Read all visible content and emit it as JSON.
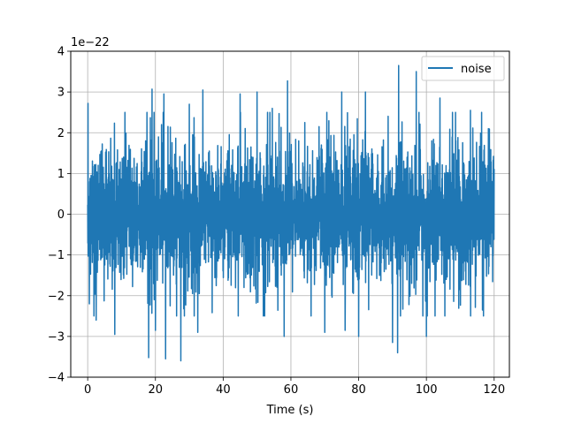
{
  "chart_data": {
    "type": "line",
    "title": "",
    "xlabel": "Time (s)",
    "ylabel": "",
    "y_offset_text": "1e−22",
    "xlim": [
      -5,
      124.5
    ],
    "ylim": [
      -4,
      4
    ],
    "y_scale_multiplier": 1e-22,
    "x_ticks": [
      0,
      20,
      40,
      60,
      80,
      100,
      120
    ],
    "x_tick_labels": [
      "0",
      "20",
      "40",
      "60",
      "80",
      "100",
      "120"
    ],
    "y_ticks": [
      -4,
      -3,
      -2,
      -1,
      0,
      1,
      2,
      3,
      4
    ],
    "y_tick_labels": [
      "−4",
      "−3",
      "−2",
      "−1",
      "0",
      "1",
      "2",
      "3",
      "4"
    ],
    "grid": true,
    "legend_position": "top-right",
    "color": "#1f77b4",
    "series": [
      {
        "name": "noise",
        "x_range": [
          0,
          120
        ],
        "typical_amplitude": 1.7,
        "peaks": [
          {
            "x": 0.1,
            "y": 2.72
          },
          {
            "x": 0.5,
            "y": -2.2
          },
          {
            "x": 2.5,
            "y": -2.6
          },
          {
            "x": 8.0,
            "y": -2.95
          },
          {
            "x": 11.0,
            "y": 2.5
          },
          {
            "x": 18.0,
            "y": -3.52
          },
          {
            "x": 19.0,
            "y": 3.07
          },
          {
            "x": 20.0,
            "y": -2.85
          },
          {
            "x": 22.5,
            "y": 2.95
          },
          {
            "x": 23.0,
            "y": -3.55
          },
          {
            "x": 27.5,
            "y": -3.6
          },
          {
            "x": 30.0,
            "y": 2.7
          },
          {
            "x": 32.5,
            "y": -2.9
          },
          {
            "x": 34.0,
            "y": 3.05
          },
          {
            "x": 45.0,
            "y": 2.95
          },
          {
            "x": 50.0,
            "y": 3.0
          },
          {
            "x": 54.5,
            "y": 2.6
          },
          {
            "x": 58.0,
            "y": -3.0
          },
          {
            "x": 59.0,
            "y": 3.27
          },
          {
            "x": 70.0,
            "y": -2.9
          },
          {
            "x": 75.0,
            "y": 3.0
          },
          {
            "x": 76.0,
            "y": -2.85
          },
          {
            "x": 80.0,
            "y": -3.0
          },
          {
            "x": 82.0,
            "y": 3.0
          },
          {
            "x": 90.0,
            "y": -3.15
          },
          {
            "x": 91.5,
            "y": -3.4
          },
          {
            "x": 91.8,
            "y": 3.65
          },
          {
            "x": 97.0,
            "y": 3.5
          },
          {
            "x": 100.0,
            "y": -3.0
          },
          {
            "x": 104.0,
            "y": 2.85
          },
          {
            "x": 113.0,
            "y": 2.55
          }
        ]
      }
    ]
  }
}
